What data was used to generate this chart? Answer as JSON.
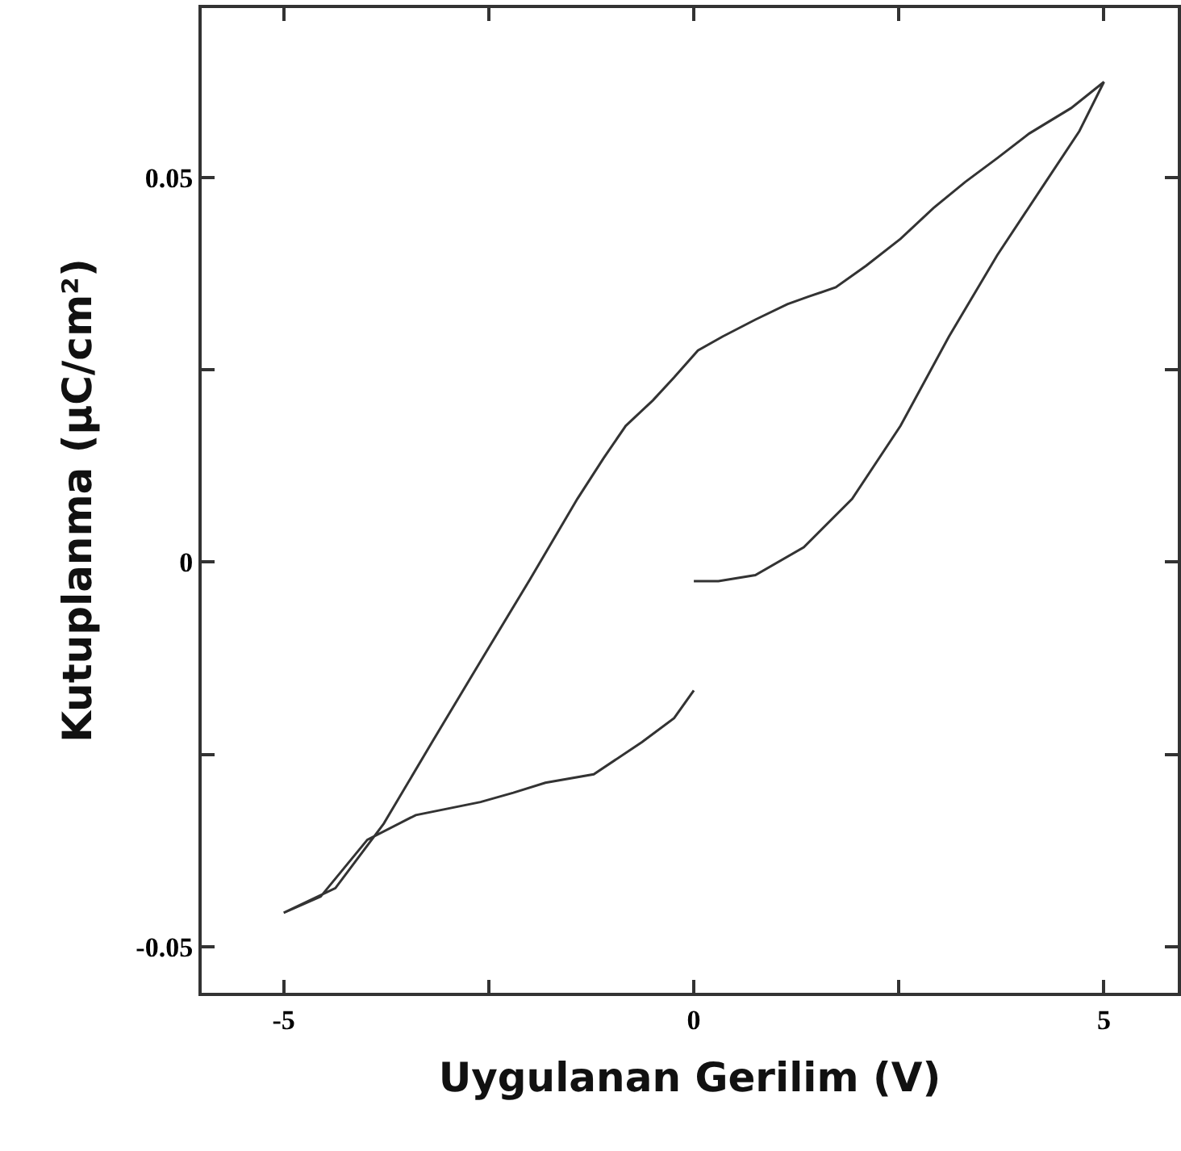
{
  "chart_data": {
    "type": "line",
    "xlabel": "Uygulanan Gerilim (V)",
    "ylabel": "Kutuplanma (μC/cm²)",
    "xlim": [
      -6,
      5.9
    ],
    "xticks": [
      -5,
      {
        "value": -2.5,
        "label": null
      },
      0,
      {
        "value": 2.5,
        "label": null
      },
      5
    ],
    "ylim": [
      -0.056,
      0.072
    ],
    "yticks": [
      -0.05,
      {
        "value": -0.025,
        "label": null
      },
      0,
      {
        "value": 0.025,
        "label": null
      },
      0.05
    ],
    "marker": "none",
    "line_style": "solid",
    "series": [
      {
        "color": "#333333",
        "x": [
          0,
          0.3,
          0.75,
          1.34,
          1.93,
          2.52,
          3.11,
          3.7,
          4.29,
          4.7,
          5,
          4.6,
          4.09,
          3.7,
          3.31,
          2.92,
          2.52,
          2.1,
          1.73,
          1.4,
          1.14,
          0.75,
          0.35,
          0.05,
          -0.24,
          -0.5,
          -0.83,
          -1.1,
          -1.42,
          -2.0,
          -2.6,
          -3.19,
          -3.78,
          -4.37,
          -5,
          -4.55,
          -3.98,
          -3.39,
          -2.6,
          -2.2,
          -1.81,
          -1.22,
          -0.63,
          -0.24,
          0
        ],
        "values": [
          -0.0025,
          -0.0025,
          -0.0017,
          0.0019,
          0.0082,
          0.0177,
          0.0293,
          0.0399,
          0.0494,
          0.056,
          0.0624,
          0.059,
          0.0557,
          0.0525,
          0.0494,
          0.046,
          0.042,
          0.0385,
          0.0357,
          0.0345,
          0.0335,
          0.0315,
          0.0293,
          0.0275,
          0.024,
          0.021,
          0.0177,
          0.0135,
          0.0082,
          -0.0023,
          -0.0129,
          -0.0234,
          -0.034,
          -0.0424,
          -0.0456,
          -0.0435,
          -0.0361,
          -0.0329,
          -0.0312,
          -0.03,
          -0.0287,
          -0.0276,
          -0.0234,
          -0.0203,
          -0.0167
        ]
      }
    ]
  }
}
